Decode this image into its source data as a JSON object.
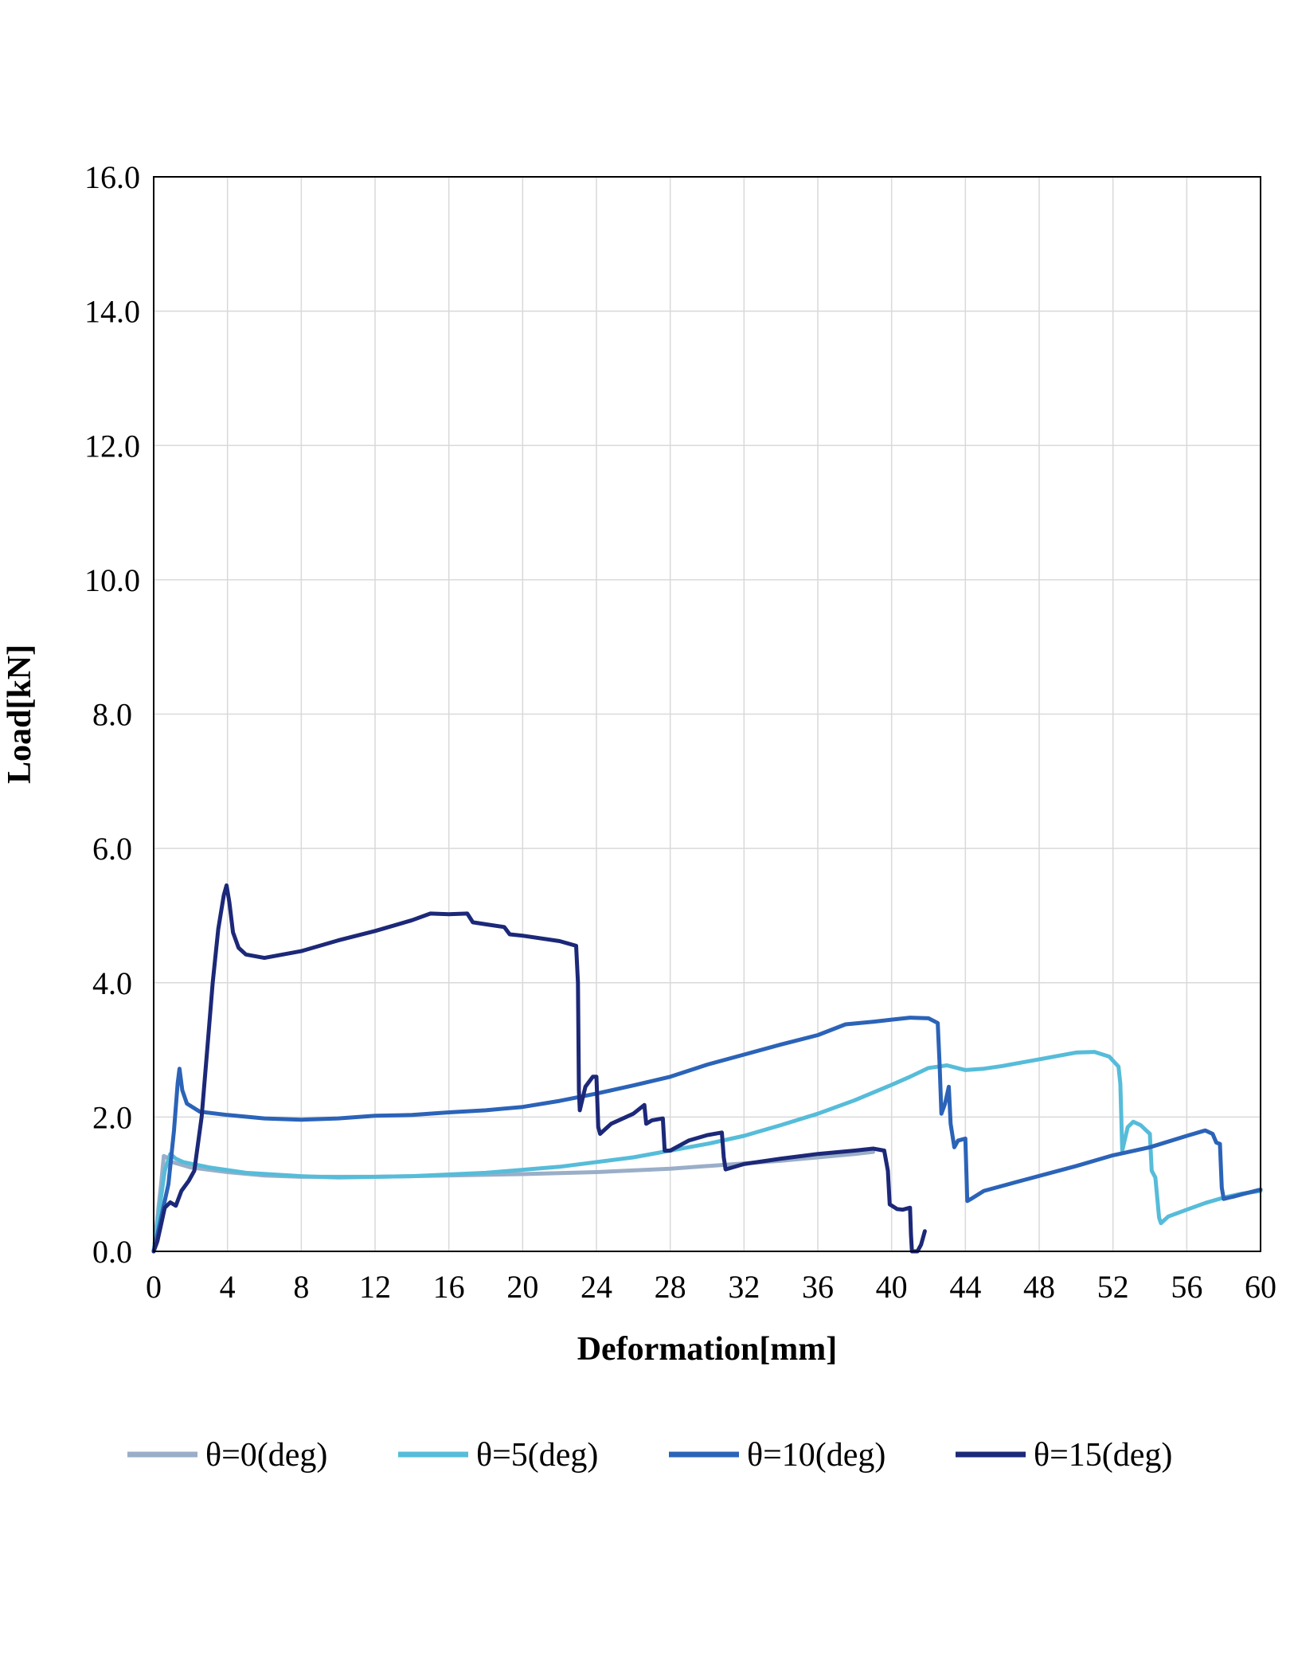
{
  "chart_data": {
    "type": "line",
    "title": "",
    "xlabel": "Deformation[mm]",
    "ylabel": "Load[kN]",
    "xlim": [
      0,
      60
    ],
    "ylim": [
      0,
      16
    ],
    "x_ticks": [
      "0",
      "4",
      "8",
      "12",
      "16",
      "20",
      "24",
      "28",
      "32",
      "36",
      "40",
      "44",
      "48",
      "52",
      "56",
      "60"
    ],
    "y_ticks": [
      "0.0",
      "2.0",
      "4.0",
      "6.0",
      "8.0",
      "10.0",
      "12.0",
      "14.0",
      "16.0"
    ],
    "grid": true,
    "legend_position": "bottom",
    "series": [
      {
        "name": "θ=0(deg)",
        "color": "#9aaec8",
        "points": [
          [
            0,
            0
          ],
          [
            0.2,
            0.5
          ],
          [
            0.4,
            1.0
          ],
          [
            0.55,
            1.42
          ],
          [
            0.7,
            1.4
          ],
          [
            1.0,
            1.33
          ],
          [
            2,
            1.25
          ],
          [
            4,
            1.18
          ],
          [
            6,
            1.13
          ],
          [
            8,
            1.11
          ],
          [
            12,
            1.11
          ],
          [
            16,
            1.13
          ],
          [
            20,
            1.15
          ],
          [
            24,
            1.18
          ],
          [
            28,
            1.23
          ],
          [
            30,
            1.27
          ],
          [
            32,
            1.31
          ],
          [
            34,
            1.35
          ],
          [
            36,
            1.4
          ],
          [
            38,
            1.45
          ],
          [
            39,
            1.48
          ]
        ]
      },
      {
        "name": "θ=5(deg)",
        "color": "#56bcd9",
        "points": [
          [
            0,
            0
          ],
          [
            0.3,
            0.6
          ],
          [
            0.6,
            1.2
          ],
          [
            0.9,
            1.45
          ],
          [
            1.2,
            1.38
          ],
          [
            1.6,
            1.33
          ],
          [
            3,
            1.25
          ],
          [
            5,
            1.17
          ],
          [
            8,
            1.12
          ],
          [
            10,
            1.1
          ],
          [
            14,
            1.12
          ],
          [
            18,
            1.17
          ],
          [
            22,
            1.26
          ],
          [
            26,
            1.4
          ],
          [
            30,
            1.6
          ],
          [
            32,
            1.72
          ],
          [
            34,
            1.88
          ],
          [
            36,
            2.05
          ],
          [
            38,
            2.25
          ],
          [
            40,
            2.48
          ],
          [
            41,
            2.6
          ],
          [
            42,
            2.73
          ],
          [
            43,
            2.77
          ],
          [
            44,
            2.7
          ],
          [
            45,
            2.72
          ],
          [
            46,
            2.76
          ],
          [
            48,
            2.86
          ],
          [
            50,
            2.96
          ],
          [
            51,
            2.97
          ],
          [
            51.8,
            2.9
          ],
          [
            52.3,
            2.75
          ],
          [
            52.4,
            2.5
          ],
          [
            52.5,
            1.5
          ],
          [
            52.8,
            1.85
          ],
          [
            53.1,
            1.93
          ],
          [
            53.5,
            1.88
          ],
          [
            53.8,
            1.8
          ],
          [
            54.0,
            1.75
          ],
          [
            54.1,
            1.2
          ],
          [
            54.3,
            1.1
          ],
          [
            54.5,
            0.5
          ],
          [
            54.6,
            0.42
          ],
          [
            55,
            0.52
          ],
          [
            56,
            0.62
          ],
          [
            57,
            0.72
          ],
          [
            58,
            0.8
          ],
          [
            59,
            0.86
          ],
          [
            60,
            0.9
          ]
        ]
      },
      {
        "name": "θ=10(deg)",
        "color": "#2b63b8",
        "points": [
          [
            0,
            0
          ],
          [
            0.4,
            0.5
          ],
          [
            0.8,
            1.0
          ],
          [
            1.1,
            1.8
          ],
          [
            1.3,
            2.5
          ],
          [
            1.4,
            2.72
          ],
          [
            1.55,
            2.4
          ],
          [
            1.8,
            2.2
          ],
          [
            2.5,
            2.08
          ],
          [
            4,
            2.03
          ],
          [
            6,
            1.98
          ],
          [
            8,
            1.96
          ],
          [
            10,
            1.98
          ],
          [
            12,
            2.02
          ],
          [
            14,
            2.03
          ],
          [
            16,
            2.07
          ],
          [
            18,
            2.1
          ],
          [
            20,
            2.15
          ],
          [
            22,
            2.24
          ],
          [
            24,
            2.35
          ],
          [
            26,
            2.47
          ],
          [
            28,
            2.6
          ],
          [
            30,
            2.78
          ],
          [
            32,
            2.93
          ],
          [
            34,
            3.08
          ],
          [
            36,
            3.22
          ],
          [
            37.5,
            3.38
          ],
          [
            39,
            3.42
          ],
          [
            40,
            3.45
          ],
          [
            41,
            3.48
          ],
          [
            42,
            3.47
          ],
          [
            42.5,
            3.4
          ],
          [
            42.6,
            2.8
          ],
          [
            42.7,
            2.05
          ],
          [
            42.9,
            2.2
          ],
          [
            43.1,
            2.45
          ],
          [
            43.2,
            1.9
          ],
          [
            43.4,
            1.55
          ],
          [
            43.6,
            1.65
          ],
          [
            44.0,
            1.68
          ],
          [
            44.1,
            0.75
          ],
          [
            44.3,
            0.78
          ],
          [
            45,
            0.9
          ],
          [
            47,
            1.05
          ],
          [
            50,
            1.27
          ],
          [
            52,
            1.43
          ],
          [
            54,
            1.55
          ],
          [
            56,
            1.72
          ],
          [
            57,
            1.8
          ],
          [
            57.4,
            1.75
          ],
          [
            57.6,
            1.62
          ],
          [
            57.8,
            1.6
          ],
          [
            57.9,
            0.95
          ],
          [
            58.0,
            0.78
          ],
          [
            58.3,
            0.8
          ],
          [
            58.6,
            0.82
          ],
          [
            59,
            0.85
          ],
          [
            60,
            0.92
          ]
        ]
      },
      {
        "name": "θ=15(deg)",
        "color": "#1c2878",
        "points": [
          [
            0,
            0
          ],
          [
            0.2,
            0.15
          ],
          [
            0.4,
            0.4
          ],
          [
            0.6,
            0.65
          ],
          [
            0.9,
            0.73
          ],
          [
            1.2,
            0.68
          ],
          [
            1.5,
            0.9
          ],
          [
            1.9,
            1.05
          ],
          [
            2.2,
            1.2
          ],
          [
            2.6,
            2.0
          ],
          [
            2.9,
            3.0
          ],
          [
            3.2,
            4.0
          ],
          [
            3.5,
            4.8
          ],
          [
            3.8,
            5.3
          ],
          [
            3.95,
            5.45
          ],
          [
            4.1,
            5.2
          ],
          [
            4.3,
            4.75
          ],
          [
            4.6,
            4.52
          ],
          [
            5,
            4.42
          ],
          [
            6,
            4.37
          ],
          [
            8,
            4.47
          ],
          [
            10,
            4.63
          ],
          [
            12,
            4.77
          ],
          [
            14,
            4.93
          ],
          [
            15,
            5.03
          ],
          [
            16,
            5.02
          ],
          [
            17,
            5.03
          ],
          [
            17.3,
            4.9
          ],
          [
            18,
            4.87
          ],
          [
            19,
            4.83
          ],
          [
            19.3,
            4.72
          ],
          [
            20,
            4.7
          ],
          [
            22,
            4.62
          ],
          [
            22.9,
            4.55
          ],
          [
            23.0,
            4.0
          ],
          [
            23.05,
            2.4
          ],
          [
            23.1,
            2.1
          ],
          [
            23.4,
            2.45
          ],
          [
            23.8,
            2.6
          ],
          [
            24.0,
            2.6
          ],
          [
            24.1,
            1.85
          ],
          [
            24.2,
            1.75
          ],
          [
            24.8,
            1.9
          ],
          [
            26,
            2.05
          ],
          [
            26.6,
            2.18
          ],
          [
            26.7,
            1.9
          ],
          [
            27.0,
            1.95
          ],
          [
            27.6,
            1.98
          ],
          [
            27.7,
            1.5
          ],
          [
            28,
            1.5
          ],
          [
            29,
            1.65
          ],
          [
            30,
            1.73
          ],
          [
            30.8,
            1.77
          ],
          [
            30.9,
            1.4
          ],
          [
            31.0,
            1.22
          ],
          [
            32,
            1.3
          ],
          [
            34,
            1.38
          ],
          [
            36,
            1.45
          ],
          [
            38,
            1.5
          ],
          [
            39,
            1.53
          ],
          [
            39.6,
            1.5
          ],
          [
            39.8,
            1.2
          ],
          [
            39.9,
            0.7
          ],
          [
            40.3,
            0.63
          ],
          [
            40.6,
            0.62
          ],
          [
            41.0,
            0.65
          ],
          [
            41.05,
            0.25
          ],
          [
            41.1,
            0.0
          ],
          [
            41.4,
            0.0
          ],
          [
            41.6,
            0.1
          ],
          [
            41.8,
            0.3
          ]
        ]
      }
    ]
  }
}
